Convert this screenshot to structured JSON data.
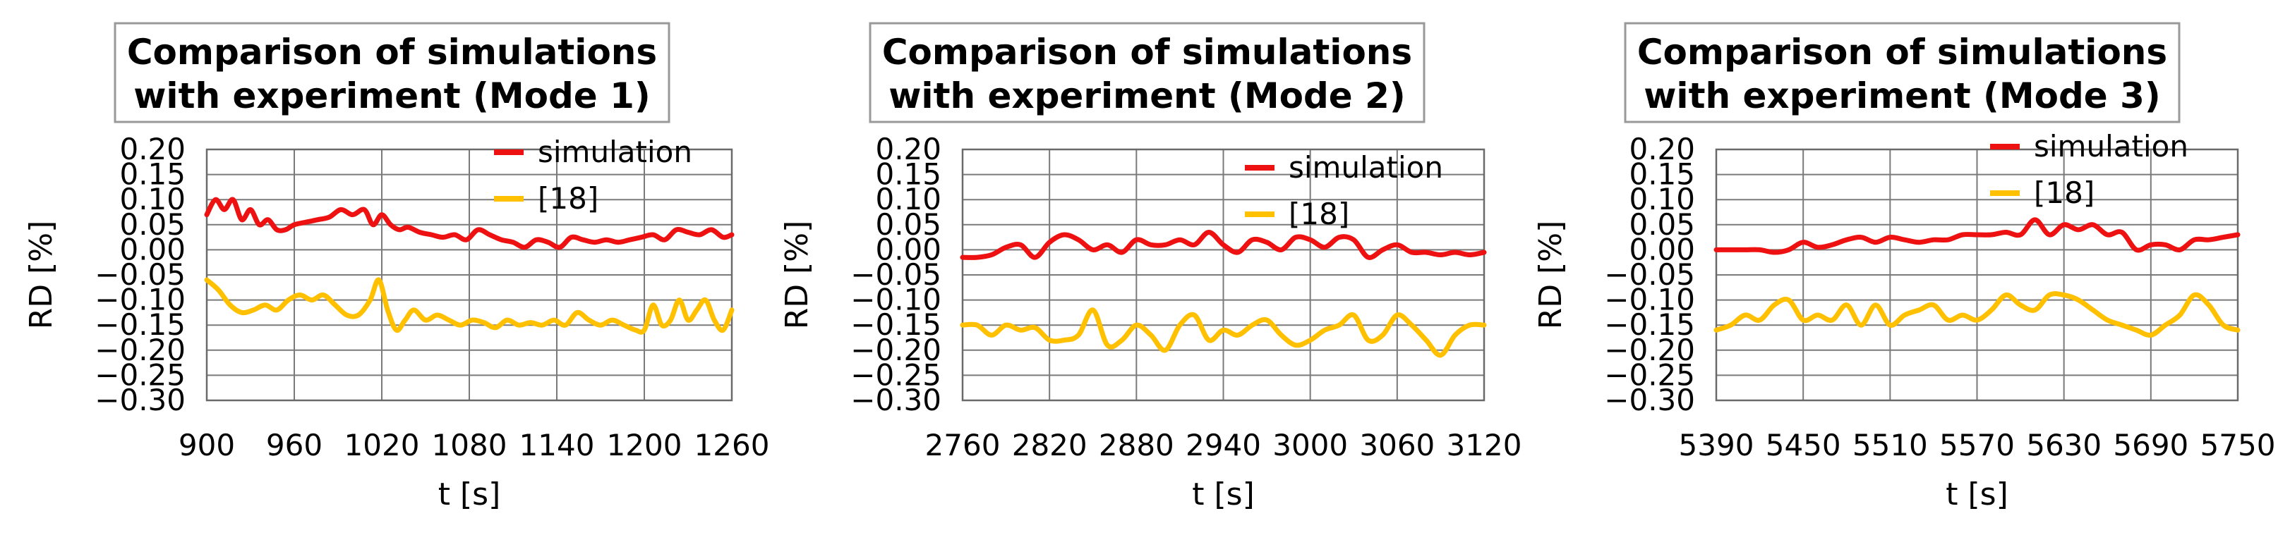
{
  "chart_data": [
    {
      "type": "line",
      "title": [
        "Comparison of simulations",
        "with experiment (Mode 1)"
      ],
      "xlabel": "t [s]",
      "ylabel": "RD [%]",
      "xlim": [
        900,
        1260
      ],
      "ylim": [
        -0.3,
        0.2
      ],
      "xticks": [
        "900",
        "960",
        "1020",
        "1080",
        "1140",
        "1200",
        "1260"
      ],
      "yticks": [
        "0.20",
        "0.15",
        "0.10",
        "0.05",
        "0.00",
        "−0.05",
        "−0.10",
        "−0.15",
        "−0.20",
        "−0.25",
        "−0.30"
      ],
      "grid": true,
      "legend": "top-right",
      "series": [
        {
          "name": "simulation",
          "color": "#ee1111",
          "x": [
            900,
            906,
            912,
            918,
            924,
            930,
            936,
            942,
            948,
            954,
            960,
            968,
            976,
            984,
            992,
            1000,
            1008,
            1014,
            1020,
            1026,
            1032,
            1038,
            1046,
            1054,
            1062,
            1070,
            1078,
            1086,
            1094,
            1102,
            1110,
            1118,
            1126,
            1134,
            1142,
            1150,
            1158,
            1166,
            1174,
            1182,
            1190,
            1198,
            1206,
            1214,
            1222,
            1230,
            1238,
            1246,
            1254,
            1260
          ],
          "y": [
            0.07,
            0.1,
            0.08,
            0.1,
            0.06,
            0.08,
            0.05,
            0.06,
            0.04,
            0.04,
            0.05,
            0.055,
            0.06,
            0.065,
            0.08,
            0.07,
            0.08,
            0.05,
            0.07,
            0.05,
            0.04,
            0.045,
            0.035,
            0.03,
            0.025,
            0.03,
            0.02,
            0.04,
            0.03,
            0.02,
            0.015,
            0.005,
            0.02,
            0.015,
            0.005,
            0.025,
            0.02,
            0.015,
            0.02,
            0.015,
            0.02,
            0.025,
            0.03,
            0.02,
            0.04,
            0.035,
            0.03,
            0.04,
            0.025,
            0.03
          ]
        },
        {
          "name": "[18]",
          "color": "#ffc000",
          "x": [
            900,
            908,
            916,
            924,
            932,
            940,
            948,
            956,
            964,
            972,
            980,
            988,
            996,
            1004,
            1012,
            1018,
            1024,
            1030,
            1036,
            1042,
            1050,
            1058,
            1066,
            1074,
            1082,
            1090,
            1098,
            1106,
            1114,
            1122,
            1130,
            1138,
            1146,
            1154,
            1162,
            1170,
            1178,
            1186,
            1194,
            1200,
            1206,
            1212,
            1218,
            1224,
            1230,
            1236,
            1242,
            1248,
            1254,
            1260
          ],
          "y": [
            -0.06,
            -0.08,
            -0.11,
            -0.125,
            -0.12,
            -0.11,
            -0.12,
            -0.1,
            -0.09,
            -0.1,
            -0.09,
            -0.11,
            -0.13,
            -0.13,
            -0.1,
            -0.06,
            -0.12,
            -0.16,
            -0.14,
            -0.12,
            -0.14,
            -0.13,
            -0.14,
            -0.15,
            -0.14,
            -0.145,
            -0.155,
            -0.14,
            -0.15,
            -0.145,
            -0.15,
            -0.14,
            -0.15,
            -0.125,
            -0.14,
            -0.15,
            -0.14,
            -0.15,
            -0.16,
            -0.16,
            -0.11,
            -0.15,
            -0.14,
            -0.1,
            -0.14,
            -0.12,
            -0.1,
            -0.14,
            -0.16,
            -0.12
          ]
        }
      ]
    },
    {
      "type": "line",
      "title": [
        "Comparison of simulations",
        "with experiment (Mode 2)"
      ],
      "xlabel": "t [s]",
      "ylabel": "RD [%]",
      "xlim": [
        2760,
        3120
      ],
      "ylim": [
        -0.3,
        0.2
      ],
      "xticks": [
        "2760",
        "2820",
        "2880",
        "2940",
        "3000",
        "3060",
        "3120"
      ],
      "yticks": [
        "0.20",
        "0.15",
        "0.10",
        "0.05",
        "0.00",
        "−0.05",
        "−0.10",
        "−0.15",
        "−0.20",
        "−0.25",
        "−0.30"
      ],
      "grid": true,
      "legend": "top-right",
      "series": [
        {
          "name": "simulation",
          "color": "#ee1111",
          "x": [
            2760,
            2770,
            2780,
            2790,
            2800,
            2810,
            2820,
            2830,
            2840,
            2850,
            2860,
            2870,
            2880,
            2890,
            2900,
            2910,
            2920,
            2930,
            2940,
            2950,
            2960,
            2970,
            2980,
            2990,
            3000,
            3010,
            3020,
            3030,
            3040,
            3050,
            3060,
            3070,
            3080,
            3090,
            3100,
            3110,
            3120
          ],
          "y": [
            -0.015,
            -0.015,
            -0.01,
            0.005,
            0.01,
            -0.015,
            0.015,
            0.03,
            0.02,
            0.0,
            0.01,
            -0.005,
            0.02,
            0.01,
            0.01,
            0.02,
            0.01,
            0.035,
            0.01,
            -0.005,
            0.02,
            0.015,
            0.0,
            0.025,
            0.02,
            0.005,
            0.025,
            0.02,
            -0.015,
            0.0,
            0.01,
            -0.005,
            -0.005,
            -0.01,
            -0.005,
            -0.01,
            -0.005
          ]
        },
        {
          "name": "[18]",
          "color": "#ffc000",
          "x": [
            2760,
            2770,
            2780,
            2790,
            2800,
            2810,
            2820,
            2830,
            2840,
            2850,
            2860,
            2870,
            2880,
            2890,
            2900,
            2910,
            2920,
            2930,
            2940,
            2950,
            2960,
            2970,
            2980,
            2990,
            3000,
            3010,
            3020,
            3030,
            3040,
            3050,
            3060,
            3070,
            3080,
            3090,
            3100,
            3110,
            3120
          ],
          "y": [
            -0.15,
            -0.15,
            -0.17,
            -0.15,
            -0.16,
            -0.155,
            -0.18,
            -0.18,
            -0.17,
            -0.12,
            -0.19,
            -0.18,
            -0.15,
            -0.17,
            -0.2,
            -0.15,
            -0.13,
            -0.18,
            -0.16,
            -0.17,
            -0.15,
            -0.14,
            -0.17,
            -0.19,
            -0.18,
            -0.16,
            -0.15,
            -0.13,
            -0.18,
            -0.17,
            -0.13,
            -0.15,
            -0.18,
            -0.21,
            -0.17,
            -0.15,
            -0.15
          ]
        }
      ]
    },
    {
      "type": "line",
      "title": [
        "Comparison of simulations",
        "with experiment (Mode 3)"
      ],
      "xlabel": "t [s]",
      "ylabel": "RD [%]",
      "xlim": [
        5390,
        5750
      ],
      "ylim": [
        -0.3,
        0.2
      ],
      "xticks": [
        "5390",
        "5450",
        "5510",
        "5570",
        "5630",
        "5690",
        "5750"
      ],
      "yticks": [
        "0.20",
        "0.15",
        "0.10",
        "0.05",
        "0.00",
        "−0.05",
        "−0.10",
        "−0.15",
        "−0.20",
        "−0.25",
        "−0.30"
      ],
      "grid": true,
      "legend": "top-right",
      "series": [
        {
          "name": "simulation",
          "color": "#ee1111",
          "x": [
            5390,
            5400,
            5410,
            5420,
            5430,
            5440,
            5450,
            5460,
            5470,
            5480,
            5490,
            5500,
            5510,
            5520,
            5530,
            5540,
            5550,
            5560,
            5570,
            5580,
            5590,
            5600,
            5610,
            5620,
            5630,
            5640,
            5650,
            5660,
            5670,
            5680,
            5690,
            5700,
            5710,
            5720,
            5730,
            5740,
            5750
          ],
          "y": [
            0.0,
            0.0,
            0.0,
            0.0,
            -0.005,
            0.0,
            0.015,
            0.005,
            0.01,
            0.02,
            0.025,
            0.015,
            0.025,
            0.02,
            0.015,
            0.02,
            0.02,
            0.03,
            0.03,
            0.03,
            0.035,
            0.03,
            0.06,
            0.03,
            0.05,
            0.04,
            0.05,
            0.03,
            0.035,
            0.0,
            0.01,
            0.01,
            0.0,
            0.02,
            0.02,
            0.025,
            0.03
          ]
        },
        {
          "name": "[18]",
          "color": "#ffc000",
          "x": [
            5390,
            5400,
            5410,
            5420,
            5430,
            5440,
            5450,
            5460,
            5470,
            5480,
            5490,
            5500,
            5510,
            5520,
            5530,
            5540,
            5550,
            5560,
            5570,
            5580,
            5590,
            5600,
            5610,
            5620,
            5630,
            5640,
            5650,
            5660,
            5670,
            5680,
            5690,
            5700,
            5710,
            5720,
            5730,
            5740,
            5750
          ],
          "y": [
            -0.16,
            -0.15,
            -0.13,
            -0.14,
            -0.11,
            -0.1,
            -0.14,
            -0.13,
            -0.14,
            -0.11,
            -0.15,
            -0.11,
            -0.15,
            -0.13,
            -0.12,
            -0.11,
            -0.14,
            -0.13,
            -0.14,
            -0.12,
            -0.09,
            -0.11,
            -0.12,
            -0.09,
            -0.09,
            -0.1,
            -0.12,
            -0.14,
            -0.15,
            -0.16,
            -0.17,
            -0.15,
            -0.13,
            -0.09,
            -0.11,
            -0.15,
            -0.16
          ]
        }
      ]
    }
  ]
}
